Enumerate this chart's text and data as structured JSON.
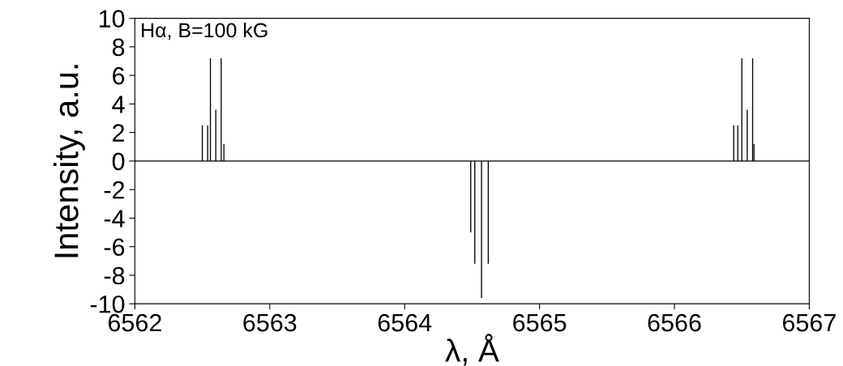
{
  "chart_data": {
    "type": "bar",
    "annotations": [
      "Hα, B=100 kG"
    ],
    "xlabel": "λ, Å",
    "ylabel": "Intensity, a.u.",
    "x": [
      6562.5,
      6562.54,
      6562.56,
      6562.6,
      6562.64,
      6562.66,
      6564.49,
      6564.52,
      6564.57,
      6564.62,
      6566.44,
      6566.47,
      6566.5,
      6566.54,
      6566.58,
      6566.59
    ],
    "values": [
      2.5,
      2.5,
      7.2,
      3.6,
      7.2,
      1.2,
      -5.0,
      -7.2,
      -9.6,
      -7.2,
      2.5,
      2.5,
      7.2,
      3.6,
      7.2,
      1.2
    ],
    "color": "#000000",
    "xlim": [
      6562,
      6567
    ],
    "xticks": [
      6562,
      6563,
      6564,
      6565,
      6566,
      6567
    ],
    "ylim": [
      -10,
      10
    ],
    "yticks": [
      -10,
      -8,
      -6,
      -4,
      -2,
      0,
      2,
      4,
      6,
      8,
      10
    ],
    "ref_lines": [
      {
        "axis": "y",
        "value": 0,
        "color": "#000000"
      }
    ],
    "grid": false,
    "legend": false
  }
}
